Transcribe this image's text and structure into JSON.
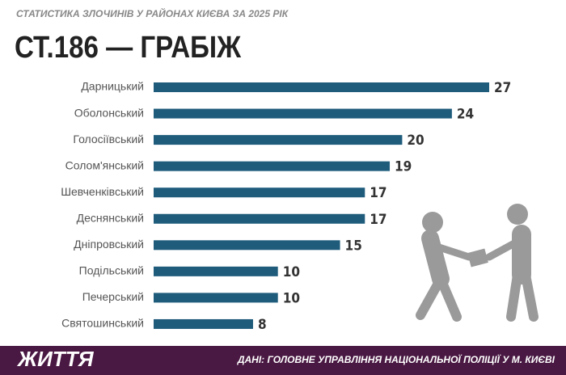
{
  "chart_data": {
    "type": "bar",
    "orientation": "horizontal",
    "subtitle": "СТАТИСТИКА ЗЛОЧИНІВ У РАЙОНАХ КИЄВА ЗА 2025 РІК",
    "title": "СТ.186 — ГРАБІЖ",
    "categories": [
      "Дарницький",
      "Оболонський",
      "Голосіївський",
      "Солом'янський",
      "Шевченківський",
      "Деснянський",
      "Дніпровський",
      "Подільський",
      "Печерський",
      "Святошинський"
    ],
    "values": [
      27,
      24,
      20,
      19,
      17,
      17,
      15,
      10,
      10,
      8
    ],
    "color": "#1f5c7c"
  },
  "footer": {
    "brand": "ЖИТТЯ",
    "source": "ДАНІ: ГОЛОВНЕ УПРАВЛІННЯ НАЦІОНАЛЬНОЇ ПОЛІЦІЇ У М. КИЄВІ"
  }
}
